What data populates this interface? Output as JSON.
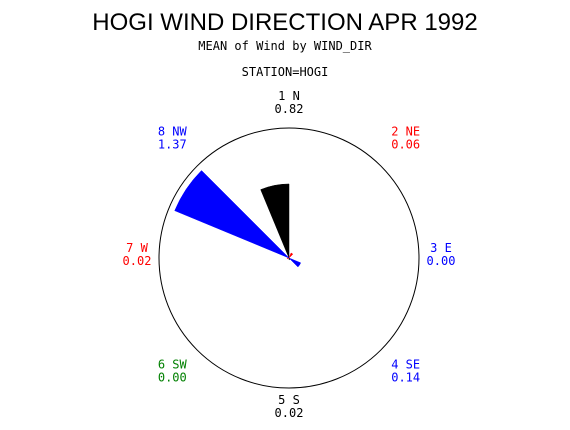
{
  "chart_data": {
    "type": "star",
    "title": "HOGI WIND DIRECTION APR 1992",
    "subtitle": "MEAN of Wind by WIND_DIR",
    "panel_title": "STATION=HOGI",
    "categories": [
      "1 N",
      "2 NE",
      "3 E",
      "4 SE",
      "5 S",
      "6 SW",
      "7 W",
      "8 NW"
    ],
    "values": [
      0.82,
      0.06,
      0,
      0.14,
      0.02,
      0,
      0.02,
      1.37
    ],
    "value_labels": [
      "0.82",
      "0.06",
      "0.00",
      "0.14",
      "0.02",
      "0.00",
      "0.02",
      "1.37"
    ],
    "colors": [
      "#000000",
      "#ff0000",
      "#0000ff",
      "#0000ff",
      "#000000",
      "#008000",
      "#ff0000",
      "#0000ff"
    ],
    "rlim": [
      0,
      1.44
    ]
  }
}
